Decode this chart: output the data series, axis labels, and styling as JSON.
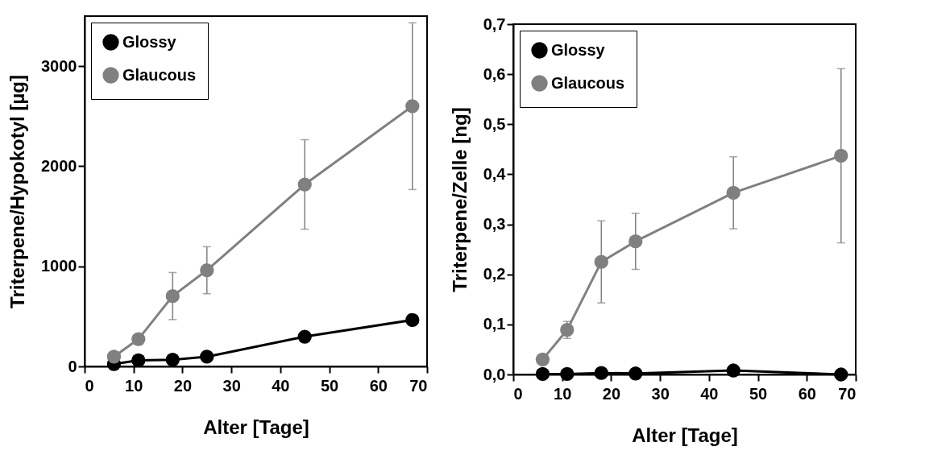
{
  "chart_data": [
    {
      "type": "line",
      "xlabel": "Alter [Tage]",
      "ylabel": "Triterpene/Hypokotyl [µg]",
      "x": [
        6,
        11,
        18,
        25,
        45,
        67
      ],
      "xlim": [
        0,
        70
      ],
      "xticks": [
        0,
        10,
        20,
        30,
        40,
        50,
        60,
        70
      ],
      "ylim": [
        0,
        3500
      ],
      "yticks": [
        0,
        1000,
        2000,
        3000
      ],
      "marker": "circle",
      "legend": "top left",
      "series": [
        {
          "name": "Glossy",
          "color": "#000000",
          "values": [
            24,
            61,
            67,
            97,
            297,
            464
          ],
          "errors": [
            null,
            null,
            null,
            null,
            null,
            50
          ]
        },
        {
          "name": "Glaucous",
          "color": "#808080",
          "values": [
            97,
            273,
            703,
            961,
            1818,
            2600
          ],
          "errors": [
            null,
            null,
            235,
            235,
            447,
            833
          ]
        }
      ]
    },
    {
      "type": "line",
      "xlabel": "Alter [Tage]",
      "ylabel": "Triterpene/Zelle [ng]",
      "x": [
        6,
        11,
        18,
        25,
        45,
        67
      ],
      "xlim": [
        0,
        70
      ],
      "xticks": [
        0,
        10,
        20,
        30,
        40,
        50,
        60,
        70
      ],
      "ylim": [
        0,
        0.7
      ],
      "yticks": [
        {
          "value": 0,
          "label": "0,0"
        },
        {
          "value": 0.1,
          "label": "0,1"
        },
        {
          "value": 0.2,
          "label": "0,2"
        },
        {
          "value": 0.3,
          "label": "0,3"
        },
        {
          "value": 0.4,
          "label": "0,4"
        },
        {
          "value": 0.5,
          "label": "0,5"
        },
        {
          "value": 0.6,
          "label": "0,6"
        },
        {
          "value": 0.7,
          "label": "0,7"
        }
      ],
      "marker": "circle",
      "legend": "top left",
      "series": [
        {
          "name": "Glossy",
          "color": "#000000",
          "values": [
            0.001,
            0.001,
            0.003,
            0.002,
            0.008,
            0.0
          ]
        },
        {
          "name": "Glaucous",
          "color": "#808080",
          "values": [
            0.03,
            0.089,
            0.225,
            0.266,
            0.363,
            0.437
          ],
          "errors": [
            null,
            0.017,
            0.082,
            0.056,
            0.072,
            0.174
          ]
        }
      ]
    }
  ]
}
